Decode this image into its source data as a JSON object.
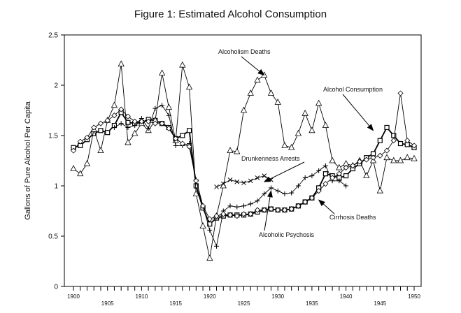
{
  "chart_data": {
    "type": "line",
    "title": "Figure 1: Estimated Alcohol Consumption",
    "xlabel": "",
    "ylabel": "Gallons of Pure Alcohol Per Capita",
    "xlim": [
      1900,
      1950
    ],
    "ylim": [
      0,
      2.5
    ],
    "yticks": [
      "0",
      "0.5",
      "1",
      "1.5",
      "2",
      "2.5"
    ],
    "xtick_labels": [
      1900,
      1905,
      1910,
      1915,
      1920,
      1925,
      1930,
      1935,
      1940,
      1945,
      1950
    ],
    "grid": false,
    "series": [
      {
        "name": "Alcohol Consumption",
        "marker": "square",
        "x": [
          1900,
          1901,
          1902,
          1903,
          1904,
          1905,
          1906,
          1907,
          1908,
          1909,
          1910,
          1911,
          1912,
          1913,
          1914,
          1915,
          1916,
          1917,
          1918,
          1919,
          1920,
          1921,
          1922,
          1923,
          1924,
          1925,
          1926,
          1927,
          1928,
          1929,
          1930,
          1931,
          1932,
          1933,
          1934,
          1935,
          1936,
          1937,
          1938,
          1939,
          1940,
          1941,
          1942,
          1943,
          1944,
          1945,
          1946,
          1947,
          1948,
          1949,
          1950
        ],
        "y": [
          1.38,
          1.4,
          1.46,
          1.52,
          1.55,
          1.53,
          1.6,
          1.73,
          1.63,
          1.62,
          1.63,
          1.66,
          1.65,
          1.62,
          1.58,
          1.47,
          1.5,
          1.55,
          1.0,
          0.78,
          0.62,
          0.68,
          0.7,
          0.71,
          0.71,
          0.71,
          0.72,
          0.74,
          0.76,
          0.77,
          0.76,
          0.76,
          0.77,
          0.8,
          0.84,
          0.88,
          0.98,
          1.12,
          1.1,
          1.08,
          1.1,
          1.17,
          1.22,
          1.28,
          1.32,
          1.45,
          1.58,
          1.5,
          1.42,
          1.41,
          1.38
        ]
      },
      {
        "name": "Alcoholism Deaths",
        "marker": "triangle",
        "x": [
          1900,
          1901,
          1902,
          1903,
          1904,
          1905,
          1906,
          1907,
          1908,
          1909,
          1910,
          1911,
          1912,
          1913,
          1914,
          1915,
          1916,
          1917,
          1918,
          1919,
          1920,
          1921,
          1922,
          1923,
          1924,
          1925,
          1926,
          1927,
          1928,
          1929,
          1930,
          1931,
          1932,
          1933,
          1934,
          1935,
          1936,
          1937,
          1938,
          1939,
          1940,
          1941,
          1942,
          1943,
          1944,
          1945,
          1946,
          1947,
          1948,
          1949,
          1950
        ],
        "y": [
          1.17,
          1.12,
          1.22,
          1.56,
          1.35,
          1.65,
          1.8,
          2.21,
          1.43,
          1.52,
          1.62,
          1.55,
          1.65,
          2.12,
          1.78,
          1.45,
          2.2,
          1.98,
          0.92,
          0.6,
          0.28,
          0.7,
          1.0,
          1.35,
          1.34,
          1.75,
          1.92,
          2.05,
          2.1,
          1.92,
          1.83,
          1.4,
          1.38,
          1.52,
          1.72,
          1.55,
          1.82,
          1.6,
          1.25,
          1.18,
          1.22,
          1.2,
          1.25,
          1.1,
          1.25,
          0.95,
          1.28,
          1.25,
          1.25,
          1.28,
          1.27
        ]
      },
      {
        "name": "Drunkenness Arrests",
        "marker": "x",
        "x": [
          1921,
          1922,
          1923,
          1924,
          1925,
          1926,
          1927,
          1928,
          1929
        ],
        "y": [
          0.99,
          1.02,
          1.06,
          1.04,
          1.03,
          1.05,
          1.08,
          1.1,
          1.06
        ]
      },
      {
        "name": "Alcoholic Psychosis",
        "marker": "plus",
        "x": [
          1906,
          1907,
          1908,
          1909,
          1910,
          1911,
          1912,
          1913,
          1914,
          1915,
          1916,
          1917,
          1918,
          1919,
          1920,
          1921,
          1922,
          1923,
          1924,
          1925,
          1926,
          1927,
          1928,
          1929,
          1930,
          1931,
          1932,
          1933,
          1934,
          1935,
          1936,
          1937,
          1938,
          1939,
          1940
        ],
        "y": [
          1.58,
          1.62,
          1.58,
          1.6,
          1.67,
          1.57,
          1.77,
          1.8,
          1.7,
          1.4,
          1.4,
          1.42,
          1.06,
          0.8,
          0.56,
          0.4,
          0.75,
          0.8,
          0.79,
          0.8,
          0.82,
          0.85,
          0.92,
          0.98,
          0.95,
          0.92,
          0.93,
          1.0,
          1.08,
          1.1,
          1.15,
          1.2,
          1.05,
          1.05,
          1.0
        ]
      },
      {
        "name": "Cirrhosis Deaths",
        "marker": "diamond",
        "x": [
          1900,
          1901,
          1902,
          1903,
          1904,
          1905,
          1906,
          1907,
          1908,
          1909,
          1910,
          1911,
          1912,
          1913,
          1914,
          1915,
          1916,
          1917,
          1918,
          1919,
          1920,
          1921,
          1922,
          1923,
          1924,
          1925,
          1926,
          1927,
          1928,
          1929,
          1930,
          1931,
          1932,
          1933,
          1934,
          1935,
          1936,
          1937,
          1938,
          1939,
          1940,
          1941,
          1942,
          1943,
          1944,
          1945,
          1946,
          1947,
          1948,
          1949,
          1950
        ],
        "y": [
          1.35,
          1.44,
          1.48,
          1.58,
          1.62,
          1.65,
          1.7,
          1.76,
          1.69,
          1.64,
          1.64,
          1.64,
          1.62,
          1.62,
          1.57,
          1.47,
          1.42,
          1.39,
          1.05,
          0.8,
          0.67,
          0.7,
          0.72,
          0.71,
          0.7,
          0.72,
          0.72,
          0.76,
          0.76,
          0.77,
          0.76,
          0.76,
          0.77,
          0.8,
          0.84,
          0.88,
          0.95,
          1.02,
          1.08,
          1.12,
          1.18,
          1.2,
          1.24,
          1.26,
          1.28,
          1.3,
          1.35,
          1.45,
          1.92,
          1.45,
          1.4
        ]
      }
    ],
    "annotations": [
      {
        "text": "Alcoholism Deaths",
        "target": [
          1928,
          2.1
        ]
      },
      {
        "text": "Alcohol Consumption",
        "target": [
          1944,
          1.55
        ]
      },
      {
        "text": "Drunkenness Arrests",
        "target": [
          1928,
          1.04
        ]
      },
      {
        "text": "Cirrhosis Deaths",
        "target": [
          1936,
          0.86
        ]
      },
      {
        "text": "Alcoholic Psychosis",
        "target": [
          1929,
          0.95
        ]
      }
    ]
  }
}
